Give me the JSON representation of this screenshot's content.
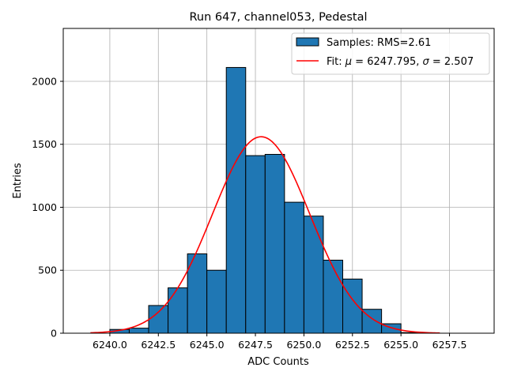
{
  "chart_data": {
    "type": "bar",
    "title": "Run 647, channel053, Pedestal",
    "xlabel": "ADC Counts",
    "ylabel": "Entries",
    "xlim": [
      6237.6,
      6259.8
    ],
    "ylim": [
      0,
      2420
    ],
    "xticks": [
      6240.0,
      6242.5,
      6245.0,
      6247.5,
      6250.0,
      6252.5,
      6255.0,
      6257.5
    ],
    "xtick_labels": [
      "6240.0",
      "6242.5",
      "6245.0",
      "6247.5",
      "6250.0",
      "6252.5",
      "6255.0",
      "6257.5"
    ],
    "yticks": [
      0,
      500,
      1000,
      1500,
      2000
    ],
    "ytick_labels": [
      "0",
      "500",
      "1000",
      "1500",
      "2000"
    ],
    "grid": true,
    "legend_position": "top-right",
    "bar_color": "#1f77b4",
    "bar_edge_color": "#000000",
    "fit_color": "#ff0000",
    "histogram": {
      "name": "Samples: RMS=2.61",
      "bin_edges": [
        6240.0,
        6241.0,
        6242.0,
        6243.0,
        6244.0,
        6245.0,
        6246.0,
        6247.0,
        6248.0,
        6249.0,
        6250.0,
        6251.0,
        6252.0,
        6253.0,
        6254.0,
        6255.0,
        6256.0,
        6257.0,
        6258.0,
        6259.0
      ],
      "counts": [
        30,
        40,
        220,
        360,
        630,
        500,
        2110,
        1410,
        1420,
        1040,
        930,
        580,
        430,
        190,
        75,
        5,
        0,
        0,
        0
      ]
    },
    "fit": {
      "name": "Fit: μ = 6247.795, σ = 2.507",
      "name_prefix": "Fit: ",
      "name_mu_symbol": "μ",
      "name_mu_value": " = 6247.795, ",
      "name_sigma_symbol": "σ",
      "name_sigma_value": " = 2.507",
      "mu": 6247.795,
      "sigma": 2.507,
      "amplitude": 1560,
      "x_range": [
        6239.0,
        6257.0
      ]
    }
  }
}
